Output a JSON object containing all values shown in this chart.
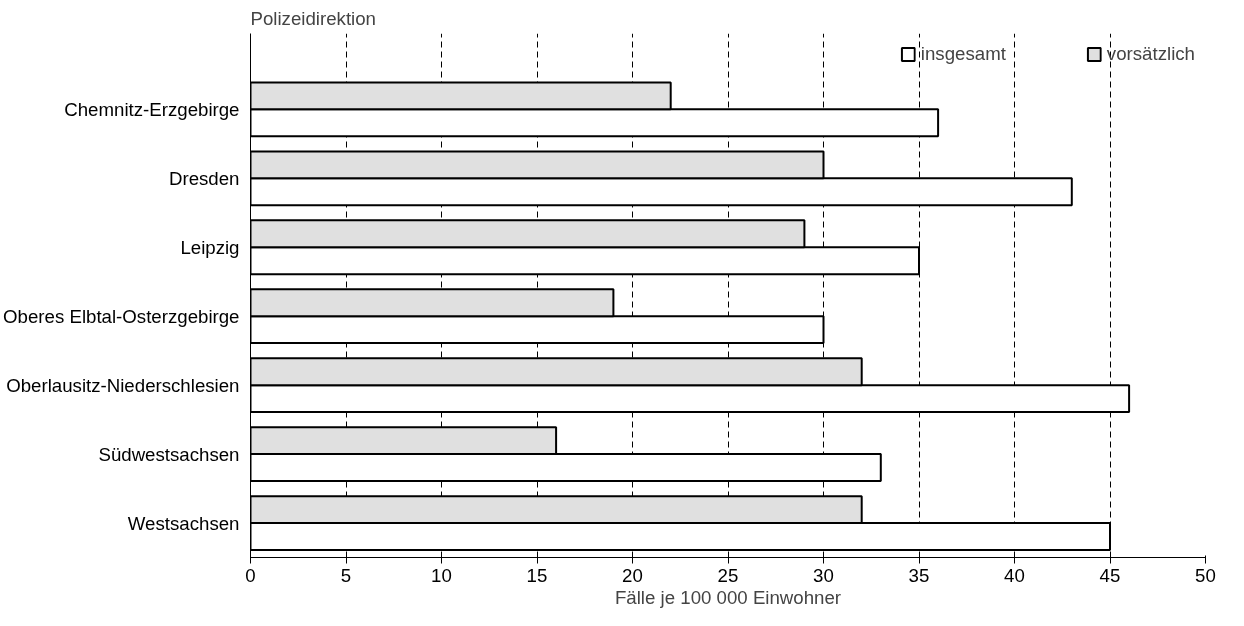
{
  "chart_data": {
    "type": "bar",
    "orientation": "horizontal",
    "ylabel": "Polizeidirektion",
    "xlabel": "Fälle je 100 000 Einwohner",
    "categories": [
      "Chemnitz-Erzgebirge",
      "Dresden",
      "Leipzig",
      "Oberes Elbtal-Osterzgebirge",
      "Oberlausitz-Niederschlesien",
      "Südwestsachsen",
      "Westsachsen"
    ],
    "series": [
      {
        "name": "insgesamt",
        "color": "#ffffff",
        "values": [
          36,
          43,
          35,
          30,
          46,
          33,
          45
        ]
      },
      {
        "name": "vorsätzlich",
        "color": "#e0e0e0",
        "values": [
          22,
          30,
          29,
          19,
          32,
          16,
          32
        ]
      }
    ],
    "xlim": [
      0,
      50
    ],
    "xticks": [
      0,
      5,
      10,
      15,
      20,
      25,
      30,
      35,
      40,
      45,
      50
    ],
    "grid": "x",
    "line_style": "dashed",
    "legend": "top right"
  }
}
